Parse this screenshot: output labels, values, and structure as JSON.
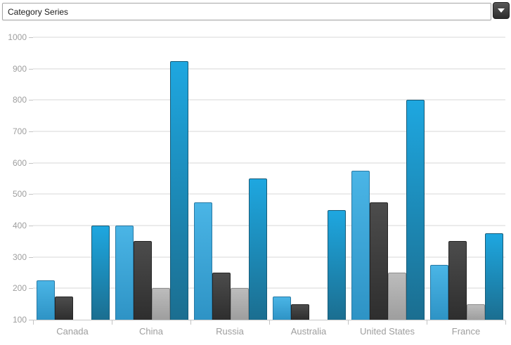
{
  "dropdown": {
    "value": "Category Series"
  },
  "chart_data": {
    "type": "bar",
    "title": "",
    "xlabel": "",
    "ylabel": "",
    "categories": [
      "Canada",
      "China",
      "Russia",
      "Australia",
      "United States",
      "France"
    ],
    "series": [
      {
        "fill_top": "#4ab5e6",
        "fill_bottom": "#2e93c5",
        "border": "#2879a4",
        "values": [
          225,
          400,
          475,
          175,
          575,
          275
        ]
      },
      {
        "fill_top": "#4c4c4c",
        "fill_bottom": "#2e2e2e",
        "border": "#252525",
        "values": [
          175,
          350,
          250,
          150,
          475,
          350
        ]
      },
      {
        "fill_top": "#bcbcbc",
        "fill_bottom": "#9e9e9e",
        "border": "#8c8c8c",
        "values": [
          null,
          200,
          200,
          null,
          250,
          150
        ]
      },
      {
        "fill_top": "#1ea7e0",
        "fill_bottom": "#1b6e90",
        "border": "#165b78",
        "values": [
          400,
          925,
          550,
          450,
          800,
          375
        ]
      }
    ],
    "ylim": [
      100,
      1000
    ],
    "ytick_step": 100,
    "yticklabels": [
      "100",
      "200",
      "300",
      "400",
      "500",
      "600",
      "700",
      "800",
      "900",
      "1000"
    ],
    "grid": "horizontal",
    "legend": "none"
  },
  "colors": {
    "background": "#ffffff",
    "gridline": "#ebebeb",
    "axis_line": "#c8c8c8",
    "tick": "#c4c4c4",
    "axis_label": "#9e9e9e",
    "combobox_border": "#a6a6a6",
    "combobox_text": "#1c1c1c",
    "button_top": "#585858",
    "button_bottom": "#2b2b2b",
    "button_border": "#1f1f1f",
    "arrow": "#ffffff"
  }
}
